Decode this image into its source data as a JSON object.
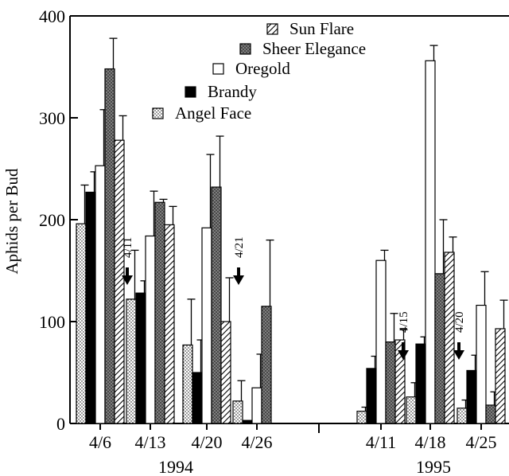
{
  "chart_data": {
    "type": "bar",
    "title": "",
    "ylabel": "Aphids per Bud",
    "ylim": [
      0,
      400
    ],
    "yticks": [
      0,
      100,
      200,
      300,
      400
    ],
    "grid": false,
    "legend_position": "top-center",
    "series": [
      {
        "name": "Angel Face",
        "pattern": "dots",
        "color": "#ffffff"
      },
      {
        "name": "Brandy",
        "pattern": "solid",
        "color": "#000000"
      },
      {
        "name": "Oregold",
        "pattern": "none",
        "color": "#ffffff"
      },
      {
        "name": "Sheer Elegance",
        "pattern": "crosshatch",
        "color": "#808080"
      },
      {
        "name": "Sun Flare",
        "pattern": "diagonal",
        "color": "#ffffff"
      }
    ],
    "legend_order": [
      "Sun Flare",
      "Sheer Elegance",
      "Oregold",
      "Brandy",
      "Angel Face"
    ],
    "years": [
      {
        "label": "1994",
        "groups": [
          {
            "date": "4/6",
            "values": [
              196,
              227,
              253,
              348,
              278
            ],
            "errors": [
              38,
              20,
              55,
              30,
              24
            ]
          },
          {
            "date": "4/13",
            "values": [
              122,
              128,
              184,
              217,
              195
            ],
            "errors": [
              48,
              12,
              44,
              3,
              18
            ]
          },
          {
            "date": "4/20",
            "values": [
              77,
              50,
              192,
              232,
              100
            ],
            "errors": [
              45,
              32,
              72,
              50,
              43
            ]
          },
          {
            "date": "4/26",
            "values": [
              22,
              3,
              35,
              115,
              null
            ],
            "errors": [
              20,
              0,
              33,
              65,
              null
            ]
          }
        ],
        "annotations": [
          {
            "text": "4/11",
            "between_groups": [
              0,
              1
            ]
          },
          {
            "text": "4/21",
            "between_groups": [
              2,
              3
            ]
          }
        ]
      },
      {
        "label": "1995",
        "groups": [
          {
            "date": "4/11",
            "values": [
              12,
              54,
              160,
              80,
              82
            ],
            "errors": [
              4,
              12,
              10,
              28,
              10
            ]
          },
          {
            "date": "4/18",
            "values": [
              26,
              78,
              356,
              147,
              168
            ],
            "errors": [
              14,
              7,
              15,
              53,
              15
            ]
          },
          {
            "date": "4/25",
            "values": [
              15,
              52,
              116,
              18,
              93
            ],
            "errors": [
              8,
              15,
              33,
              13,
              28
            ]
          }
        ],
        "annotations": [
          {
            "text": "4/15",
            "between_groups": [
              0,
              1
            ]
          },
          {
            "text": "4/20",
            "between_groups": [
              1,
              2
            ]
          }
        ]
      }
    ]
  }
}
